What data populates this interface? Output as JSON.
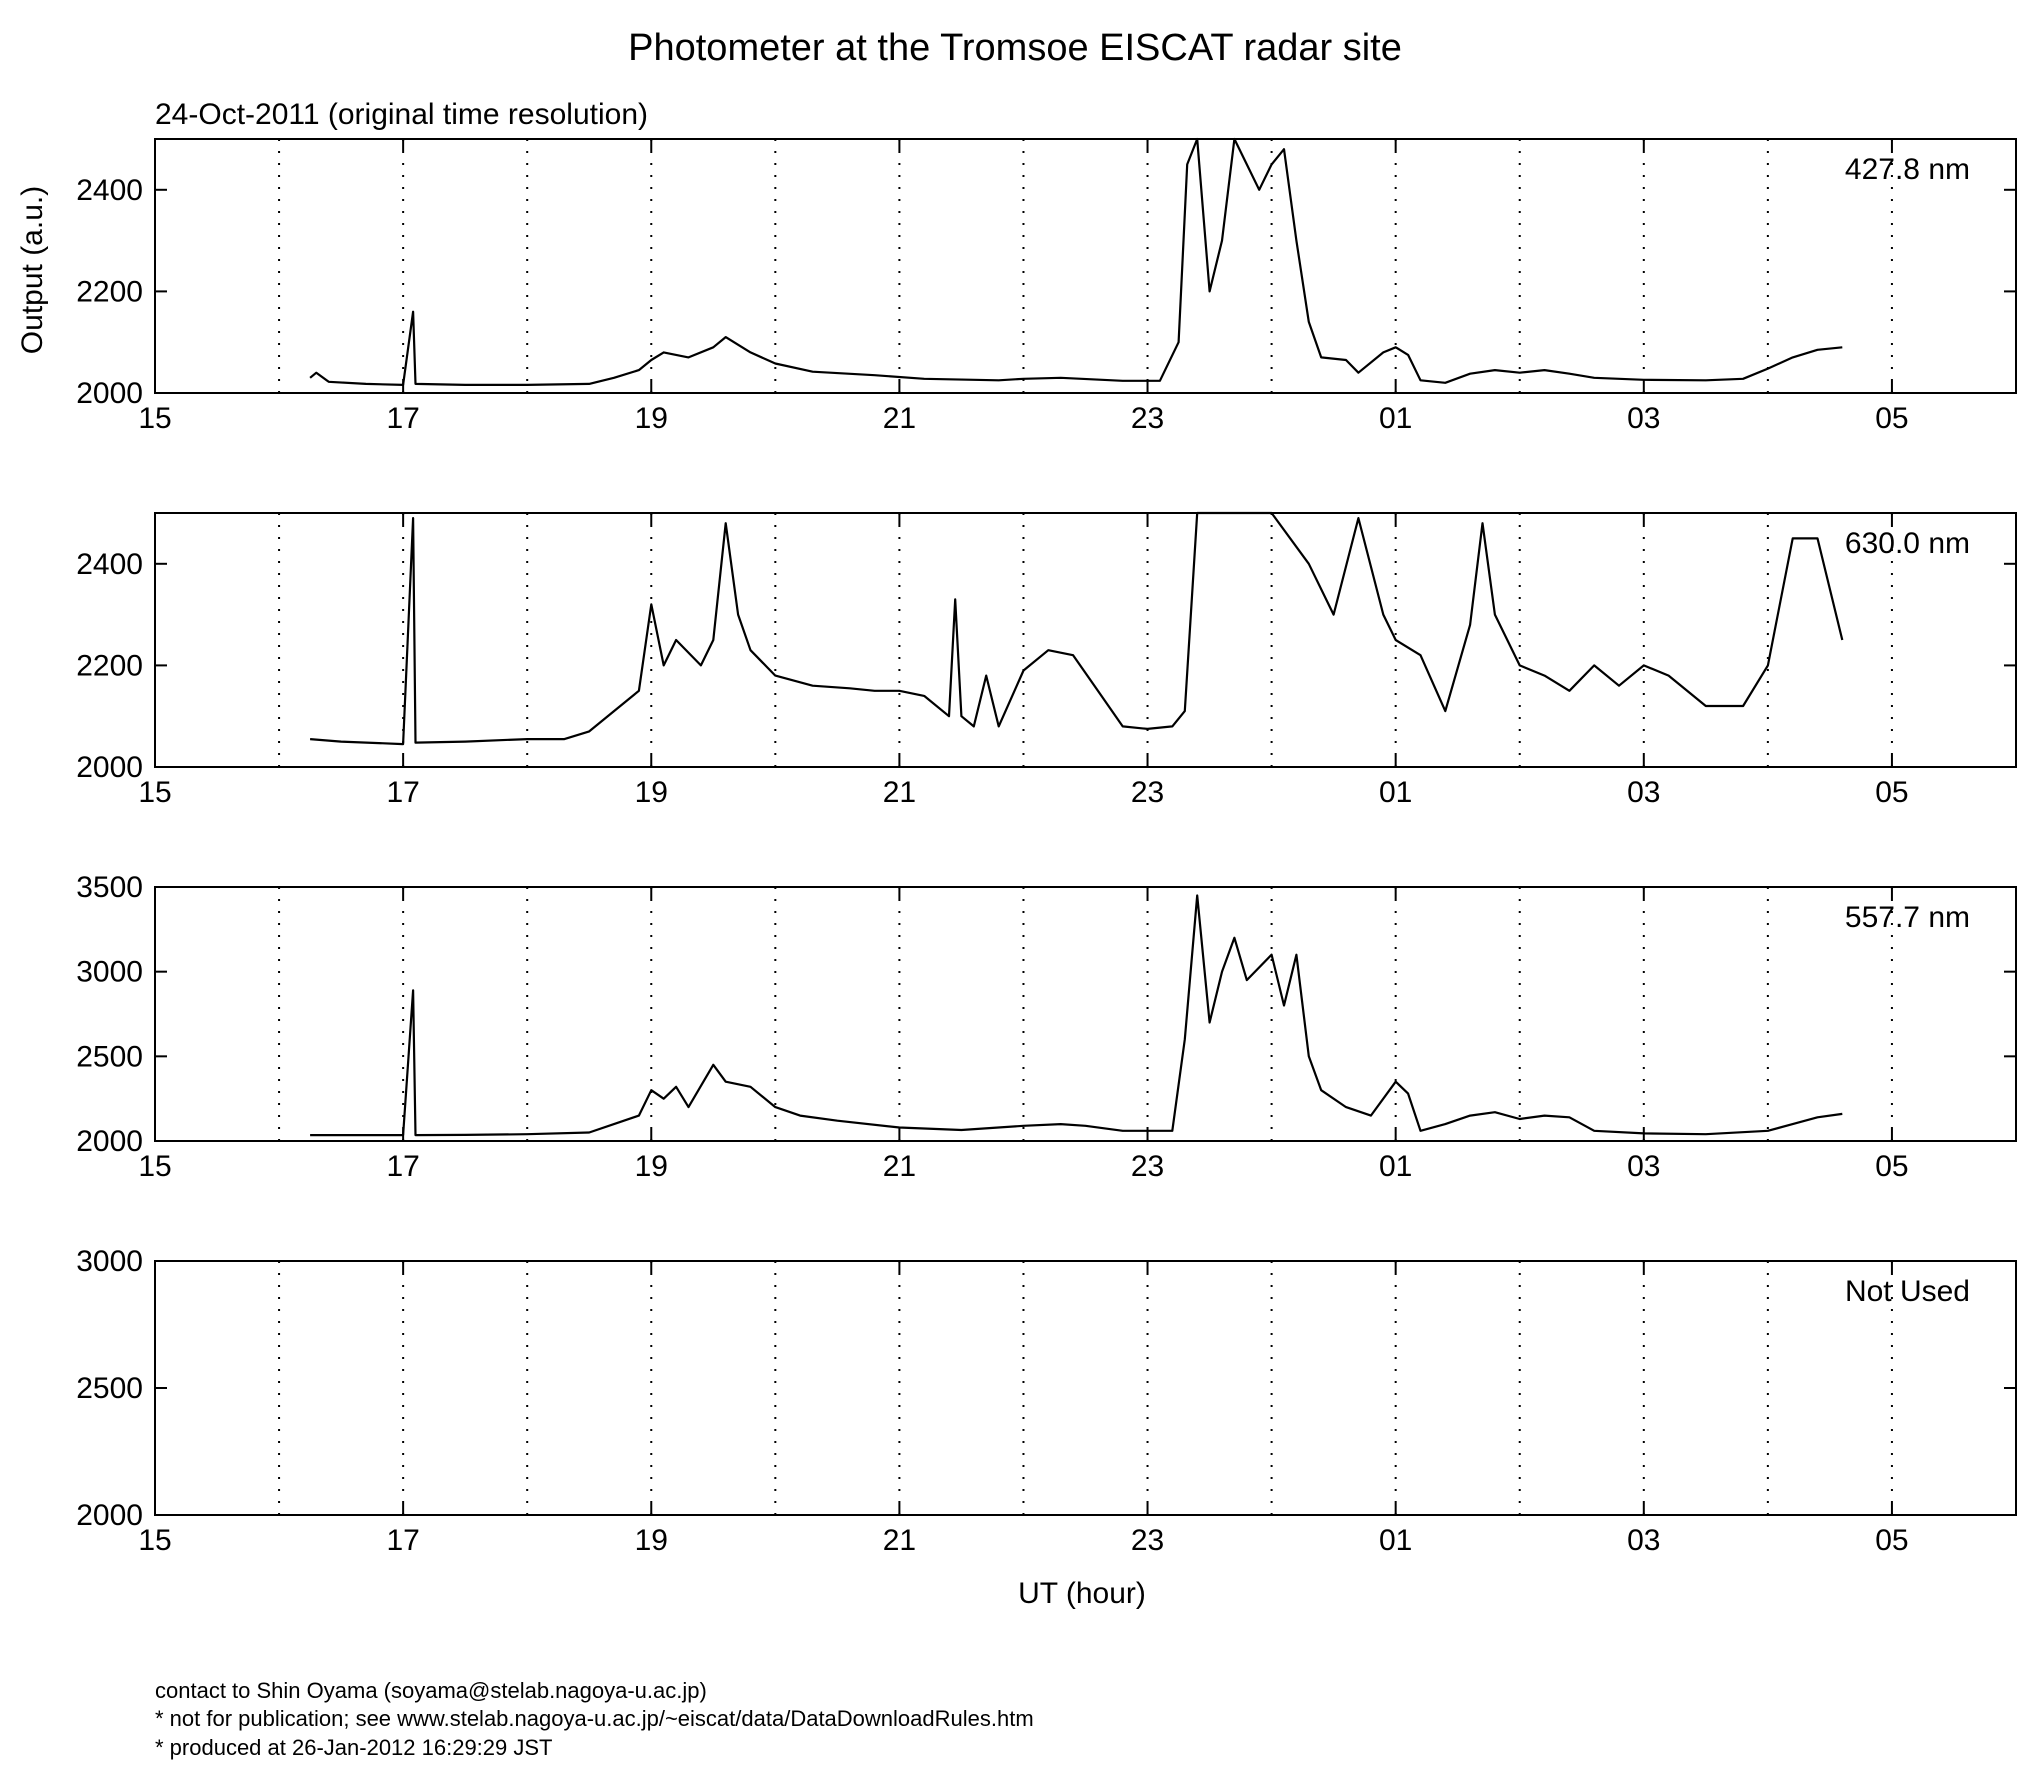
{
  "chart_data": {
    "type": "line",
    "title": "Photometer at the Tromsoe EISCAT radar site",
    "subtitle": "24-Oct-2011 (original time resolution)",
    "xlabel": "UT (hour)",
    "ylabel": "Output (a.u.)",
    "x_unit": "hours since 15 UT",
    "xlim": [
      15,
      30
    ],
    "x_ticks": [
      "15",
      "17",
      "19",
      "21",
      "23",
      "01",
      "03",
      "05"
    ],
    "x_tick_positions": [
      15,
      17,
      19,
      21,
      23,
      25,
      27,
      29
    ],
    "grid": "vertical dotted every hour",
    "panels": [
      {
        "label": "427.8 nm",
        "ylim": [
          2000,
          2500
        ],
        "yticks": [
          "2000",
          "2200",
          "2400"
        ],
        "ytick_values": [
          2000,
          2200,
          2400
        ],
        "series": [
          {
            "x": [
              16.25,
              16.3,
              16.4,
              16.7,
              17.0,
              17.08,
              17.1,
              17.5,
              18.0,
              18.5,
              18.7,
              18.9,
              19.0,
              19.1,
              19.3,
              19.5,
              19.6,
              19.8,
              20.0,
              20.3,
              20.8,
              21.2,
              21.8,
              22.0,
              22.3,
              22.8,
              23.1,
              23.25,
              23.32,
              23.4,
              23.5,
              23.6,
              23.7,
              23.8,
              23.9,
              24.0,
              24.1,
              24.2,
              24.3,
              24.4,
              24.6,
              24.7,
              24.9,
              25.0,
              25.1,
              25.2,
              25.4,
              25.6,
              25.8,
              26.0,
              26.2,
              26.4,
              26.6,
              27.0,
              27.5,
              27.8,
              28.0,
              28.2,
              28.4,
              28.6
            ],
            "y": [
              2030,
              2040,
              2022,
              2018,
              2016,
              2160,
              2018,
              2016,
              2016,
              2018,
              2030,
              2045,
              2065,
              2080,
              2070,
              2090,
              2110,
              2080,
              2058,
              2042,
              2035,
              2028,
              2025,
              2028,
              2030,
              2024,
              2024,
              2100,
              2450,
              2500,
              2200,
              2300,
              2500,
              2450,
              2400,
              2450,
              2480,
              2300,
              2140,
              2070,
              2065,
              2040,
              2080,
              2090,
              2075,
              2025,
              2020,
              2038,
              2045,
              2040,
              2045,
              2038,
              2030,
              2026,
              2025,
              2028,
              2048,
              2070,
              2085,
              2090
            ]
          }
        ]
      },
      {
        "label": "630.0 nm",
        "ylim": [
          2000,
          2500
        ],
        "yticks": [
          "2000",
          "2200",
          "2400"
        ],
        "ytick_values": [
          2000,
          2200,
          2400
        ],
        "series": [
          {
            "x": [
              16.25,
              16.5,
              17.0,
              17.08,
              17.1,
              17.5,
              18.0,
              18.3,
              18.5,
              18.7,
              18.9,
              19.0,
              19.1,
              19.2,
              19.4,
              19.5,
              19.6,
              19.7,
              19.8,
              20.0,
              20.3,
              20.6,
              20.8,
              21.0,
              21.2,
              21.4,
              21.45,
              21.5,
              21.6,
              21.7,
              21.8,
              22.0,
              22.2,
              22.4,
              22.6,
              22.8,
              23.0,
              23.2,
              23.3,
              23.4,
              23.6,
              24.0,
              24.3,
              24.5,
              24.7,
              24.9,
              25.0,
              25.2,
              25.4,
              25.6,
              25.7,
              25.8,
              26.0,
              26.2,
              26.4,
              26.6,
              26.8,
              27.0,
              27.2,
              27.5,
              27.8,
              28.0,
              28.2,
              28.4,
              28.6
            ],
            "y": [
              2055,
              2050,
              2045,
              2490,
              2048,
              2050,
              2055,
              2055,
              2070,
              2110,
              2150,
              2320,
              2200,
              2250,
              2200,
              2250,
              2480,
              2300,
              2230,
              2180,
              2160,
              2155,
              2150,
              2150,
              2140,
              2100,
              2330,
              2100,
              2080,
              2180,
              2080,
              2190,
              2230,
              2220,
              2150,
              2080,
              2075,
              2080,
              2110,
              2500,
              2500,
              2500,
              2400,
              2300,
              2490,
              2300,
              2250,
              2220,
              2110,
              2280,
              2480,
              2300,
              2200,
              2180,
              2150,
              2200,
              2160,
              2200,
              2180,
              2120,
              2120,
              2200,
              2450,
              2450,
              2250
            ]
          }
        ]
      },
      {
        "label": "557.7 nm",
        "ylim": [
          2000,
          3500
        ],
        "yticks": [
          "2000",
          "2500",
          "3000",
          "3500"
        ],
        "ytick_values": [
          2000,
          2500,
          3000,
          3500
        ],
        "series": [
          {
            "x": [
              16.25,
              16.5,
              17.0,
              17.08,
              17.1,
              17.5,
              18.0,
              18.5,
              18.7,
              18.9,
              19.0,
              19.1,
              19.2,
              19.3,
              19.5,
              19.6,
              19.8,
              20.0,
              20.2,
              20.5,
              21.0,
              21.5,
              22.0,
              22.3,
              22.5,
              22.8,
              23.2,
              23.3,
              23.4,
              23.5,
              23.6,
              23.7,
              23.8,
              24.0,
              24.1,
              24.2,
              24.3,
              24.4,
              24.6,
              24.8,
              25.0,
              25.1,
              25.2,
              25.4,
              25.6,
              25.8,
              26.0,
              26.2,
              26.4,
              26.6,
              27.0,
              27.5,
              28.0,
              28.2,
              28.4,
              28.6
            ],
            "y": [
              2035,
              2035,
              2035,
              2890,
              2035,
              2036,
              2040,
              2050,
              2100,
              2150,
              2300,
              2250,
              2320,
              2200,
              2450,
              2350,
              2320,
              2200,
              2150,
              2120,
              2080,
              2065,
              2090,
              2100,
              2090,
              2060,
              2060,
              2600,
              3450,
              2700,
              3000,
              3200,
              2950,
              3100,
              2800,
              3100,
              2500,
              2300,
              2200,
              2150,
              2350,
              2280,
              2060,
              2100,
              2150,
              2170,
              2130,
              2150,
              2140,
              2060,
              2045,
              2040,
              2060,
              2100,
              2140,
              2160
            ]
          }
        ]
      },
      {
        "label": "Not Used",
        "ylim": [
          2000,
          3000
        ],
        "yticks": [
          "2000",
          "2500",
          "3000"
        ],
        "ytick_values": [
          2000,
          2500,
          3000
        ],
        "series": []
      }
    ]
  },
  "footer": {
    "line1": "contact to Shin Oyama (soyama@stelab.nagoya-u.ac.jp)",
    "line2": "* not for publication; see www.stelab.nagoya-u.ac.jp/~eiscat/data/DataDownloadRules.htm",
    "line3": "* produced at 26-Jan-2012 16:29:29 JST"
  }
}
